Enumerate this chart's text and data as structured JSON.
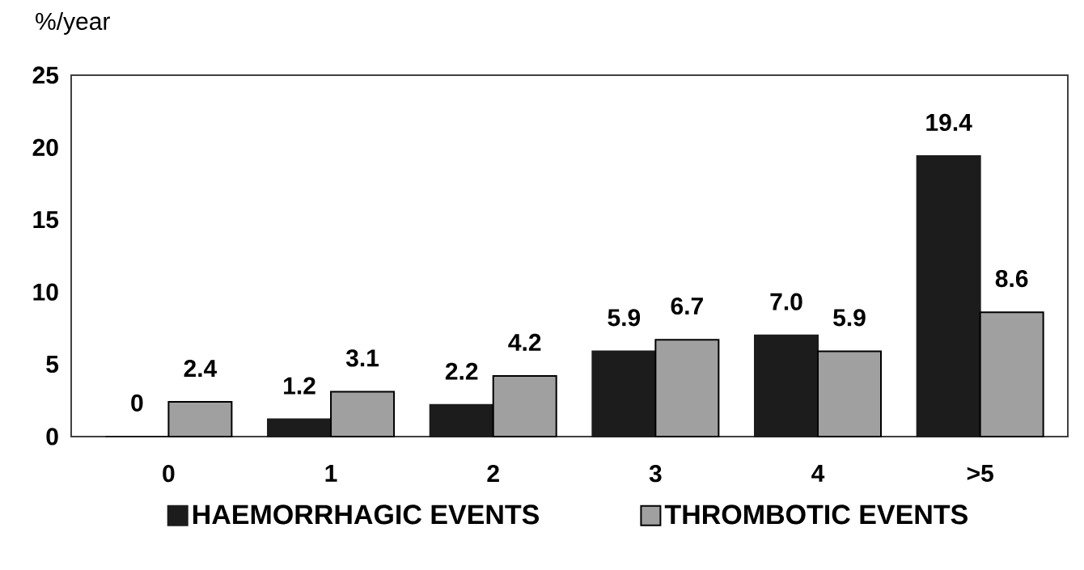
{
  "chart_data": {
    "type": "bar",
    "ylabel": "%/year",
    "categories": [
      "0",
      "1",
      "2",
      "3",
      "4",
      ">5"
    ],
    "series": [
      {
        "name": "HAEMORRHAGIC EVENTS",
        "color": "#1c1c1c",
        "values": [
          0,
          1.2,
          2.2,
          5.9,
          7.0,
          19.4
        ],
        "value_labels": [
          "0",
          "1.2",
          "2.2",
          "5.9",
          "7.0",
          "19.4"
        ]
      },
      {
        "name": "THROMBOTIC EVENTS",
        "color": "#a0a0a0",
        "values": [
          2.4,
          3.1,
          4.2,
          6.7,
          5.9,
          8.6
        ],
        "value_labels": [
          "2.4",
          "3.1",
          "4.2",
          "6.7",
          "5.9",
          "8.6"
        ]
      }
    ],
    "ylim": [
      0,
      25
    ],
    "yticks": [
      0,
      5,
      10,
      15,
      20,
      25
    ],
    "grid": false,
    "legend": "bottom"
  }
}
